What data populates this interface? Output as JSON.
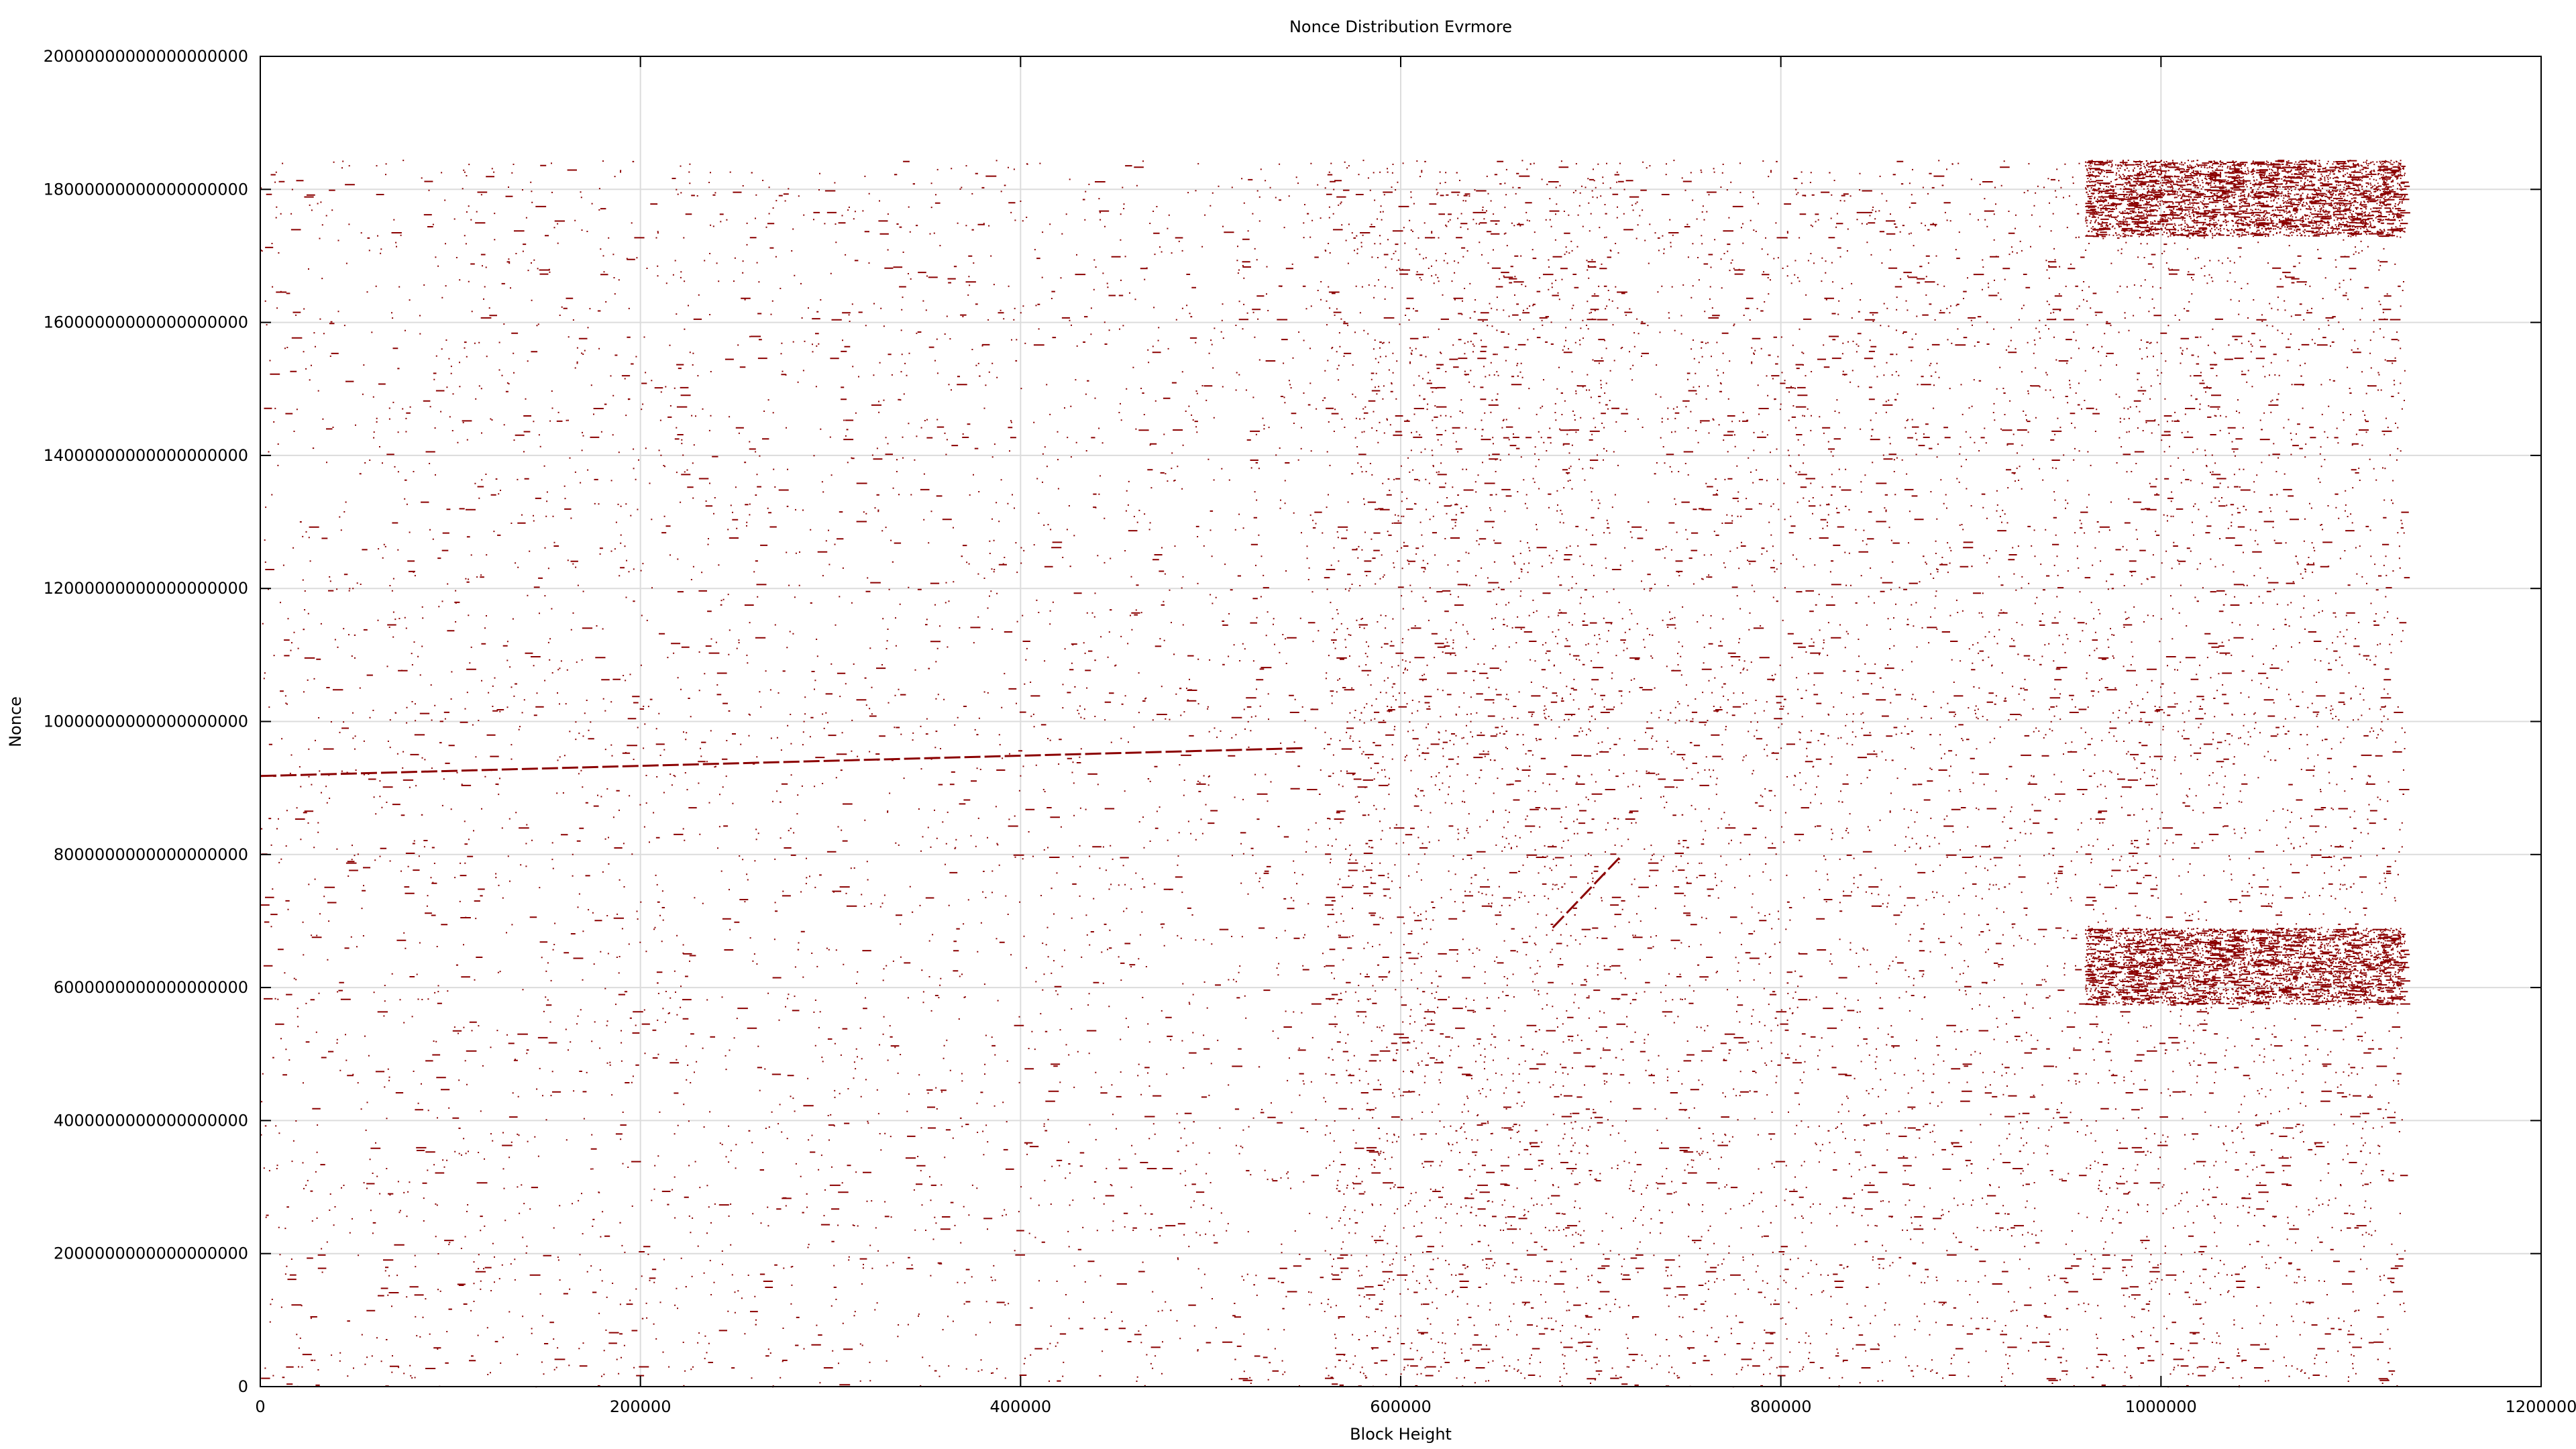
{
  "chart_data": {
    "type": "scatter",
    "title": "Nonce Distribution Evrmore",
    "xlabel": "Block Height",
    "ylabel": "Nonce",
    "xlim": [
      0,
      1200000
    ],
    "ylim": [
      0,
      20000000000000000000
    ],
    "x_ticks": [
      "0",
      "200000",
      "400000",
      "600000",
      "800000",
      "1000000",
      "1200000"
    ],
    "y_ticks": [
      "0",
      "2000000000000000000",
      "4000000000000000000",
      "6000000000000000000",
      "8000000000000000000",
      "10000000000000000000",
      "12000000000000000000",
      "14000000000000000000",
      "16000000000000000000",
      "18000000000000000000",
      "20000000000000000000"
    ],
    "grid": true,
    "point_color": "#8b0000",
    "nonce_max": 18446744073709551615,
    "series": [
      {
        "regions": [
          {
            "x_range": [
              0,
              560000
            ],
            "y_range": [
              0,
              18446744073709551615
            ],
            "density": "high"
          },
          {
            "x_range": [
              560000,
              710000
            ],
            "y_range": [
              0,
              18446744073709551615
            ],
            "density": "medium"
          },
          {
            "x_range": [
              710000,
              960000
            ],
            "y_range": [
              0,
              18446744073709551615
            ],
            "density": "very high"
          },
          {
            "x_range": [
              960000,
              1128000
            ],
            "y_range": [
              0,
              18446744073709551615
            ],
            "density": "sparse"
          },
          {
            "x_range": [
              960000,
              1128000
            ],
            "y_range": [
              17300000000000000000,
              18446744073709551615
            ],
            "density": "saturated"
          },
          {
            "x_range": [
              960000,
              1128000
            ],
            "y_range": [
              5750000000000000000,
              6900000000000000000
            ],
            "density": "saturated"
          }
        ],
        "streaks": [
          {
            "from": [
              0,
              9180000000000000000
            ],
            "to": [
              550000,
              9600000000000000000
            ]
          },
          {
            "from": [
              680000,
              6900000000000000000
            ],
            "to": [
              715000,
              7950000000000000000
            ]
          }
        ]
      }
    ]
  }
}
